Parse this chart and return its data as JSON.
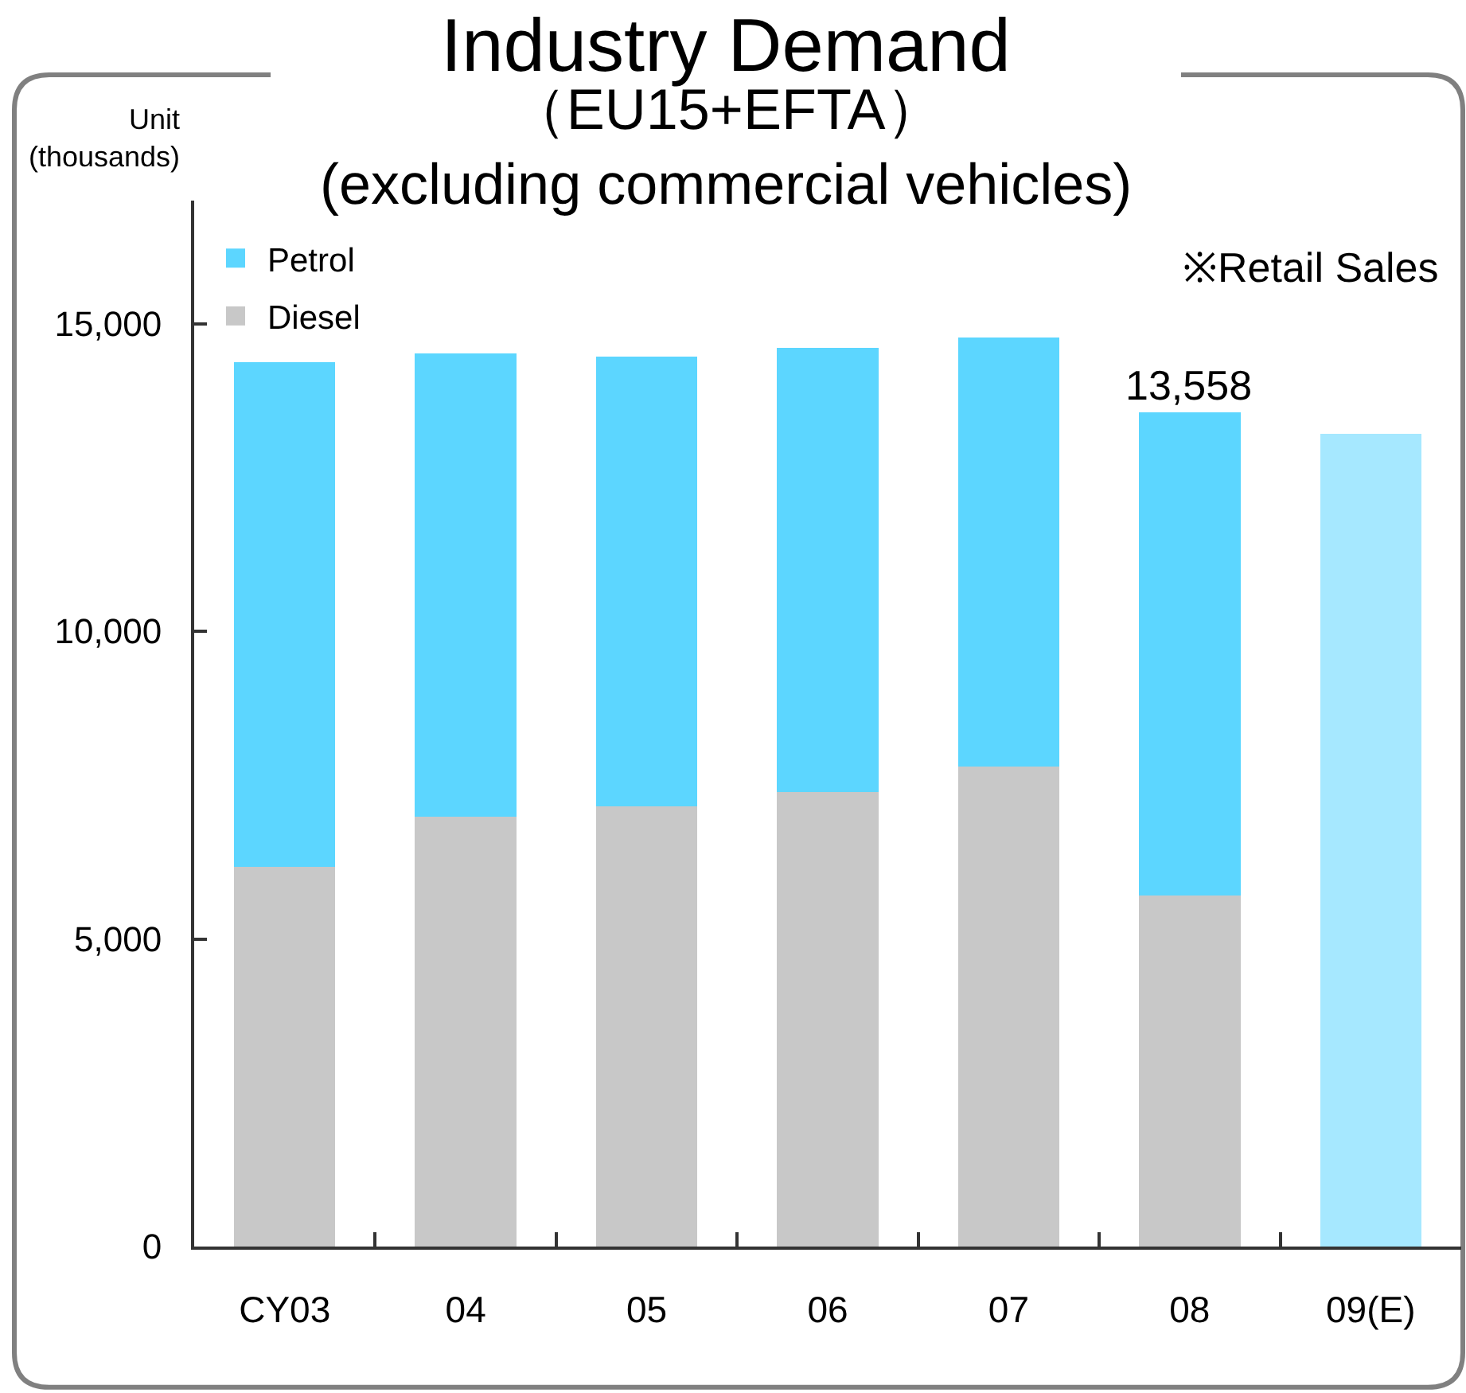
{
  "chart_data": {
    "type": "bar",
    "title": "Industry Demand",
    "subtitle": "（EU15+EFTA）\n(excluding commercial vehicles)",
    "ylabel": "Unit\n(thousands)",
    "annotations": [
      "※Retail Sales"
    ],
    "categories": [
      "CY03",
      "04",
      "05",
      "06",
      "07",
      "08",
      "09(E)"
    ],
    "series": [
      {
        "name": "Diesel",
        "color": "#c8c8c8",
        "values": [
          6170,
          6980,
          7160,
          7390,
          7800,
          5710,
          null
        ]
      },
      {
        "name": "Petrol",
        "color": "#5cd6ff",
        "values": [
          8200,
          7530,
          7300,
          7220,
          6970,
          7848,
          null
        ]
      },
      {
        "color": "#a6e8ff",
        "values": [
          null,
          null,
          null,
          null,
          null,
          null,
          13210
        ]
      }
    ],
    "stacked": true,
    "totals": [
      null,
      null,
      null,
      null,
      null,
      "13,558",
      null
    ],
    "ylim": [
      0,
      17000
    ],
    "yticks": [
      0,
      {
        "value": 5000,
        "label": "5,000"
      },
      {
        "value": 10000,
        "label": "10,000"
      },
      {
        "value": 15000,
        "label": "15,000"
      }
    ],
    "grid": false,
    "legend": "top left"
  }
}
